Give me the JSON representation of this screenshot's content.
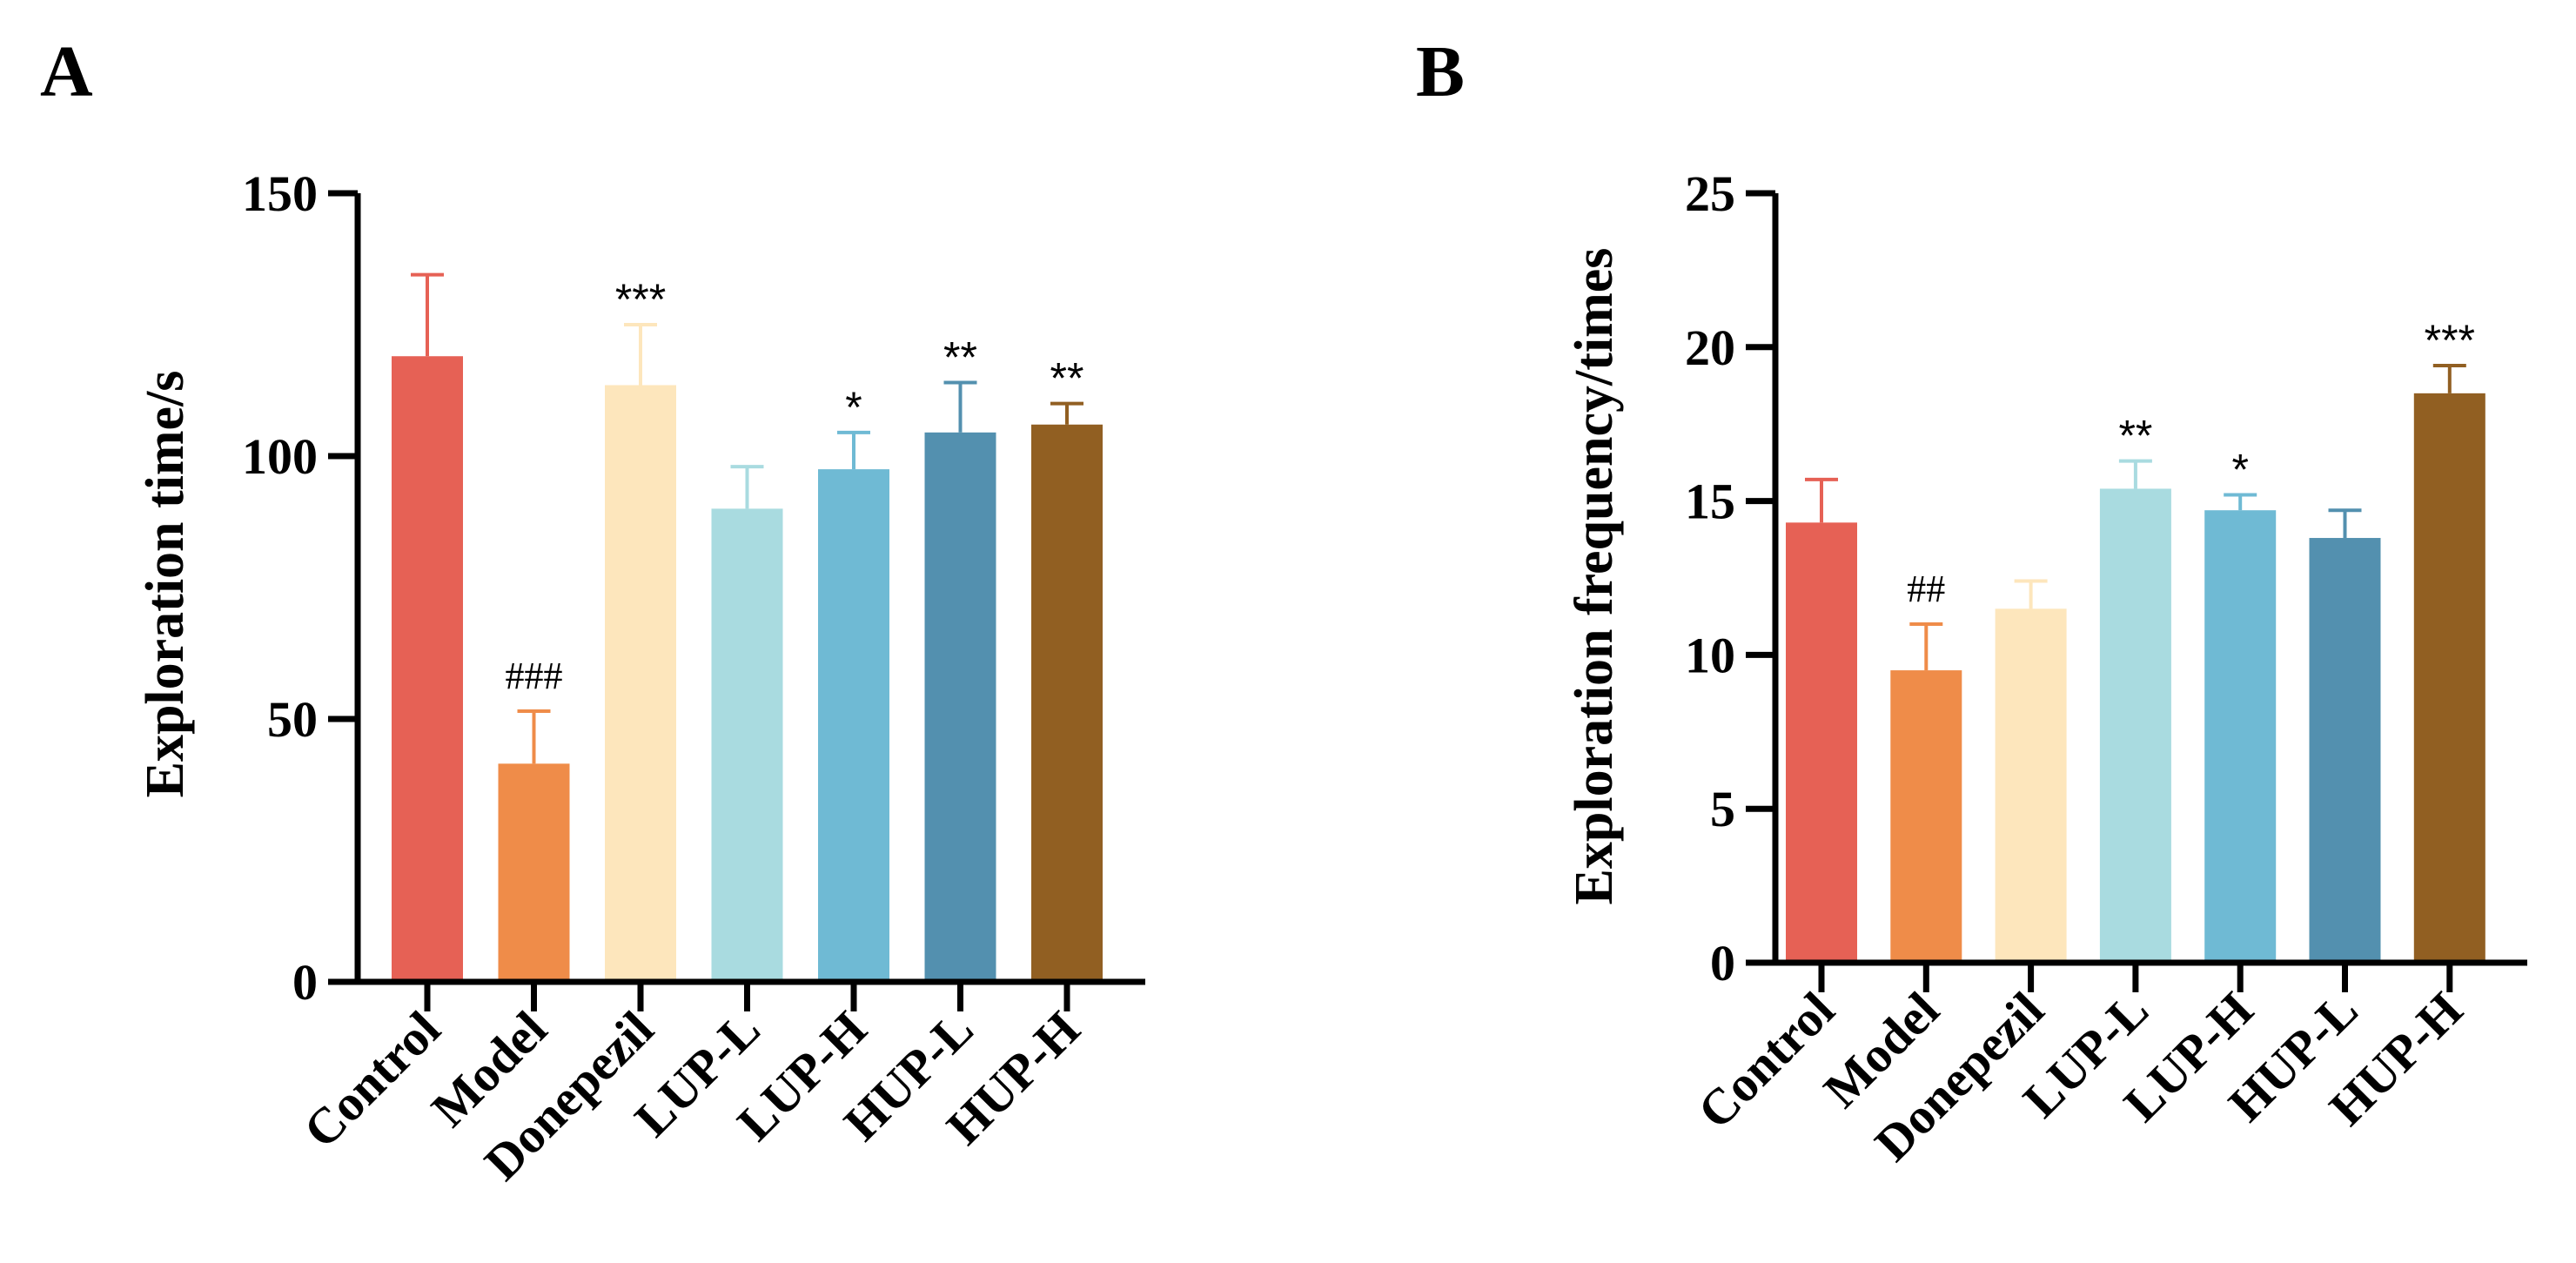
{
  "chart_data": [
    {
      "type": "bar",
      "panel": "A",
      "ylabel": "Exploration time/s",
      "ylim": [
        0,
        150
      ],
      "yticks": [
        0,
        50,
        100,
        150
      ],
      "categories": [
        "Control",
        "Model",
        "Donepezil",
        "LUP-L",
        "LUP-H",
        "HUP-L",
        "HUP-H"
      ],
      "values": [
        119,
        41.5,
        113.5,
        90,
        97.5,
        104.5,
        106
      ],
      "errors": [
        15.5,
        10,
        11.5,
        8,
        7,
        9.5,
        4
      ],
      "annotations": [
        "",
        "###",
        "***",
        "",
        "*",
        "**",
        "**"
      ],
      "colors": [
        "#E66155",
        "#EF8C49",
        "#FDE6BC",
        "#A9DBE0",
        "#6FBAD4",
        "#5390AF",
        "#915F22"
      ]
    },
    {
      "type": "bar",
      "panel": "B",
      "ylabel": "Exploration frequency/times",
      "ylim": [
        0,
        25
      ],
      "yticks": [
        0,
        5,
        10,
        15,
        20,
        25
      ],
      "categories": [
        "Control",
        "Model",
        "Donepezil",
        "LUP-L",
        "LUP-H",
        "HUP-L",
        "HUP-H"
      ],
      "values": [
        14.3,
        9.5,
        11.5,
        15.4,
        14.7,
        13.8,
        18.5
      ],
      "errors": [
        1.4,
        1.5,
        0.9,
        0.9,
        0.5,
        0.9,
        0.9
      ],
      "annotations": [
        "",
        "##",
        "",
        "**",
        "*",
        "",
        "***"
      ],
      "colors": [
        "#E66155",
        "#EF8C49",
        "#FDE6BC",
        "#A9DBE0",
        "#6FBAD4",
        "#5390AF",
        "#915F22"
      ]
    }
  ]
}
